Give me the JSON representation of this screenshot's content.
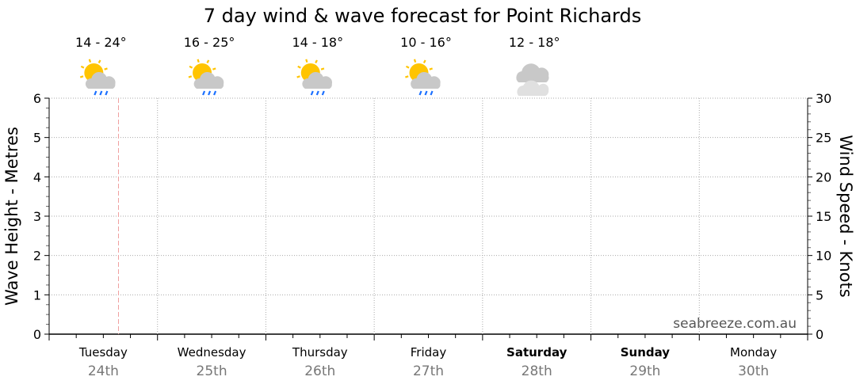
{
  "chart_data": {
    "type": "line",
    "title": "7 day wind & wave forecast for Point Richards",
    "ylabel": "Wave Height - Metres",
    "y2label": "Wind Speed - Knots",
    "ylim": [
      0,
      6
    ],
    "y2lim": [
      0,
      30
    ],
    "yticks": [
      "0",
      "1",
      "2",
      "3",
      "4",
      "5",
      "6"
    ],
    "y2ticks": [
      "0",
      "5",
      "10",
      "15",
      "20",
      "25",
      "30"
    ],
    "grid": true,
    "days": [
      {
        "name": "Tuesday",
        "date": "24th",
        "bold": false,
        "temp": "14 - 24°",
        "icon": "sun-cloud-rain-icon"
      },
      {
        "name": "Wednesday",
        "date": "25th",
        "bold": false,
        "temp": "16 - 25°",
        "icon": "sun-cloud-rain-icon"
      },
      {
        "name": "Thursday",
        "date": "26th",
        "bold": false,
        "temp": "14 - 18°",
        "icon": "sun-cloud-rain-icon"
      },
      {
        "name": "Friday",
        "date": "27th",
        "bold": false,
        "temp": "10 - 16°",
        "icon": "sun-cloud-rain-icon"
      },
      {
        "name": "Saturday",
        "date": "28th",
        "bold": true,
        "temp": "12 - 18°",
        "icon": "cloud-icon"
      },
      {
        "name": "Sunday",
        "date": "29th",
        "bold": true,
        "temp": "",
        "icon": ""
      },
      {
        "name": "Monday",
        "date": "30th",
        "bold": false,
        "temp": "",
        "icon": ""
      }
    ],
    "current_time_day_fraction": 0.64,
    "series": [],
    "watermark": "seabreeze.com.au",
    "colors": {
      "now_line": "#f0a0a0",
      "grid": "#aaaaaa",
      "rain": "#1a6fff",
      "sun": "#ffc400",
      "cloud": "#c8c8c8"
    }
  }
}
